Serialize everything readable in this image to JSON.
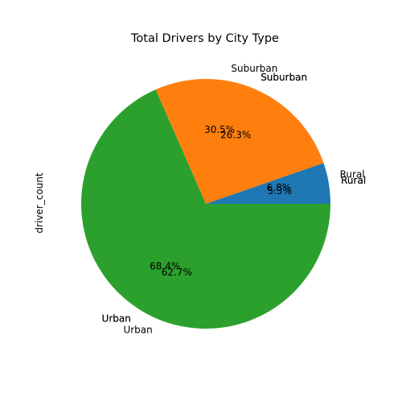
{
  "chart_data": {
    "type": "pie",
    "title": "Total Drivers by City Type",
    "ylabel": "driver_count",
    "xlabel": "",
    "start_angle_deg": 0,
    "direction": "counterclockwise",
    "legend": "none",
    "grid": false,
    "label_layers": [
      {
        "categories": [
          "Rural",
          "Suburban",
          "Urban"
        ],
        "values": [
          6.8,
          30.5,
          62.7
        ],
        "autopct": [
          "6.8%",
          "30.5%",
          "62.7%"
        ]
      },
      {
        "categories": [
          "Rural",
          "Suburban",
          "Urban"
        ],
        "values": [
          5.3,
          26.3,
          68.4
        ],
        "autopct": [
          "5.3%",
          "26.3%",
          "68.4%"
        ]
      },
      {
        "categories": [
          "Rural",
          "Suburban",
          "Urban"
        ],
        "values": [
          5.3,
          26.3,
          68.4
        ],
        "autopct": [
          "",
          "",
          ""
        ]
      }
    ],
    "series": [
      {
        "categories": [
          "Rural",
          "Suburban",
          "Urban"
        ],
        "values": [
          5.3,
          26.3,
          68.4
        ]
      }
    ],
    "colors": [
      "#1f77b4",
      "#ff7f0e",
      "#2ca02c"
    ]
  }
}
